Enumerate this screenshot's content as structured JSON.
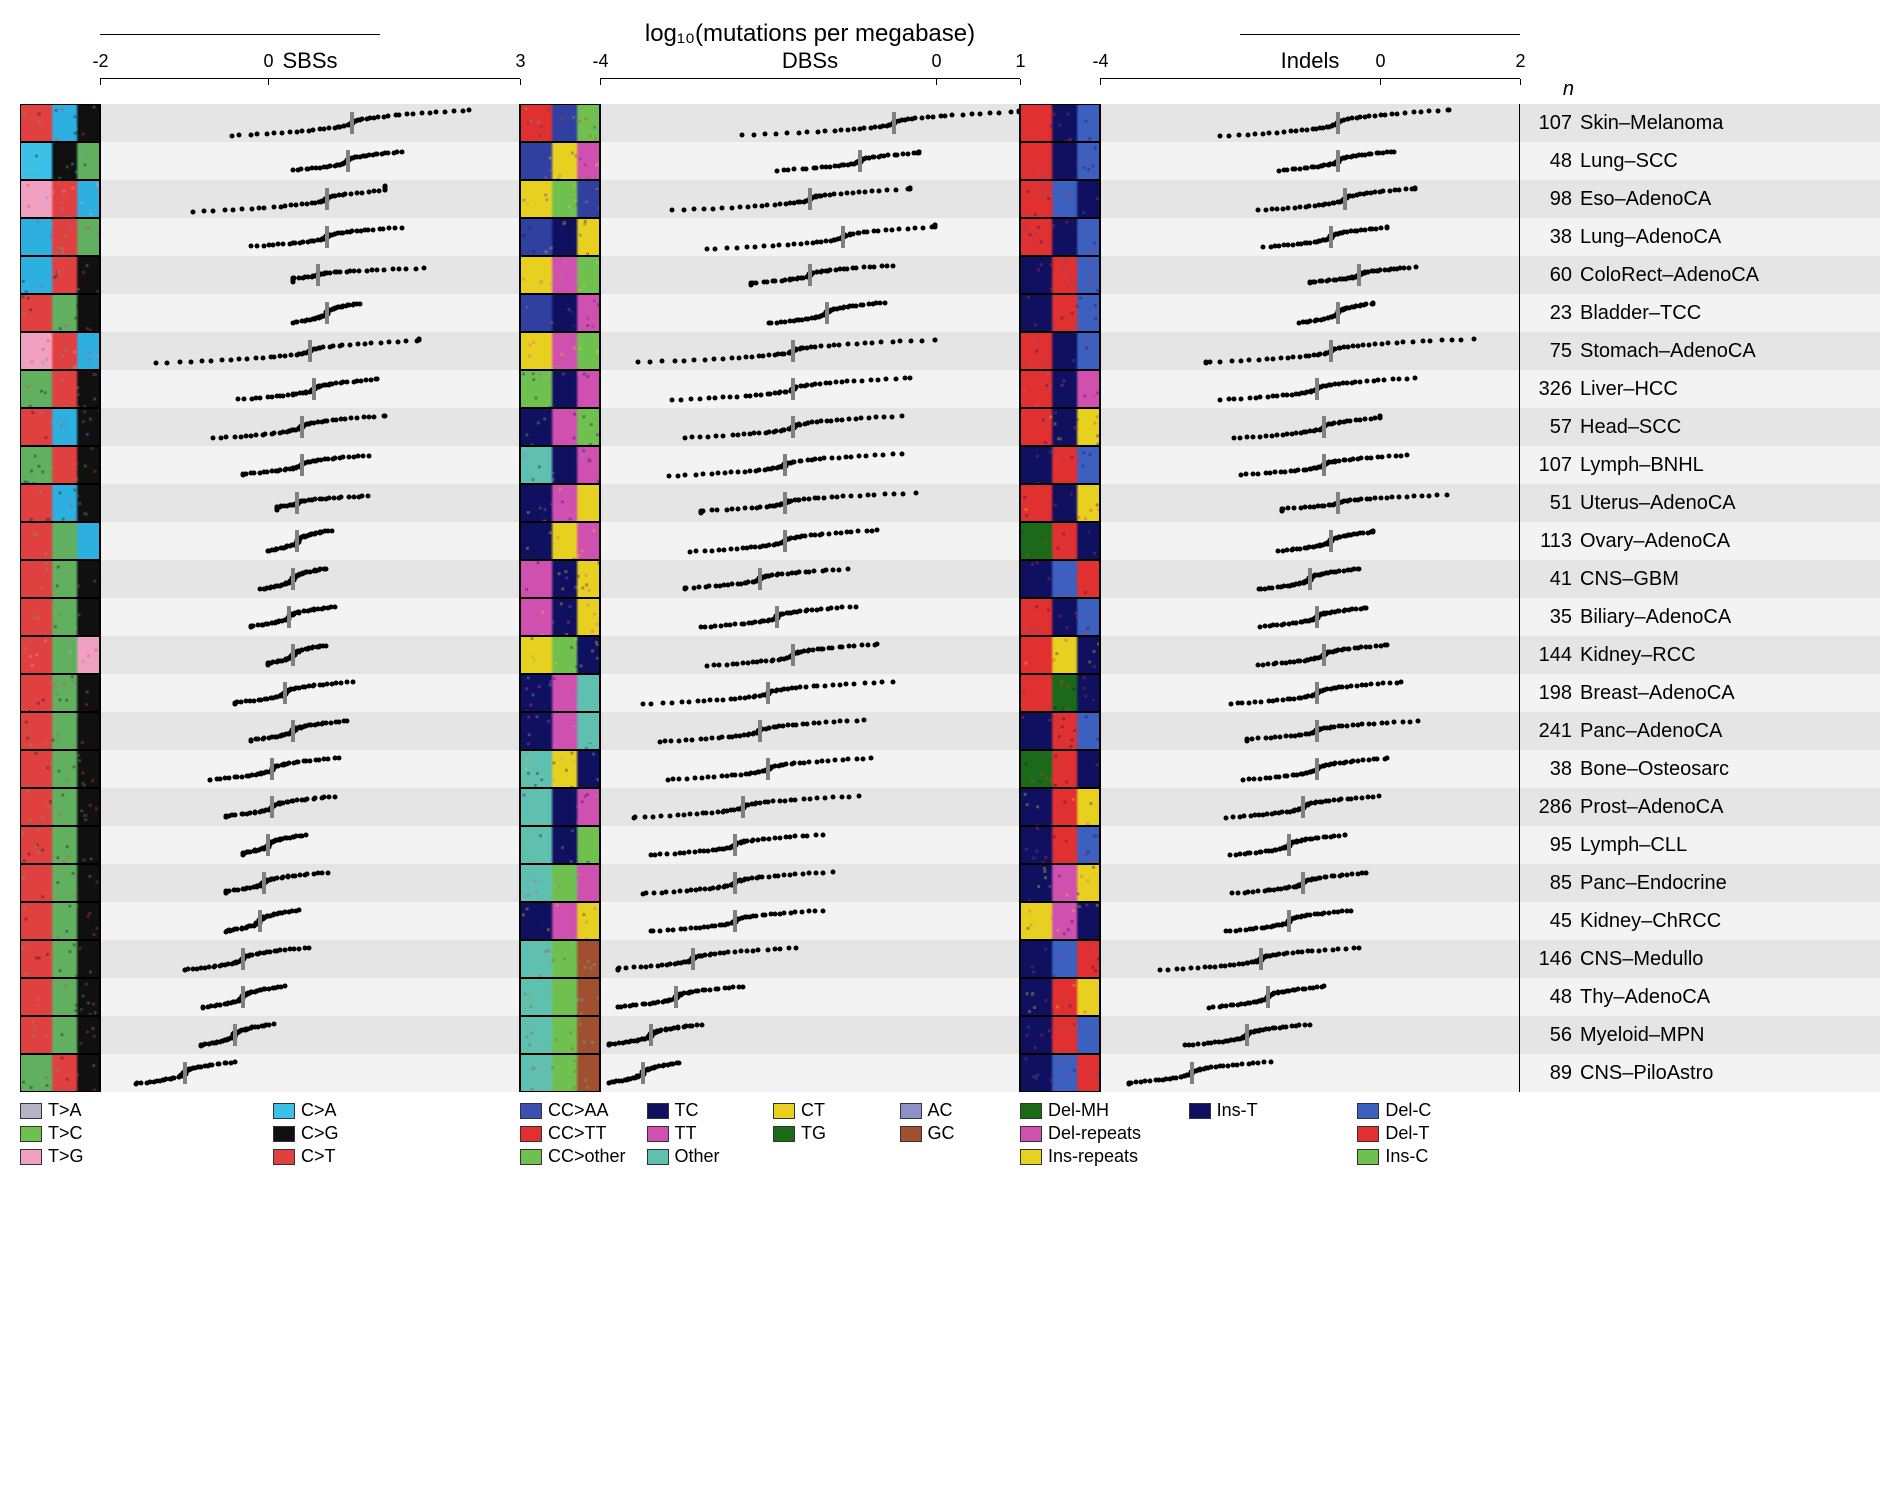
{
  "figure": {
    "main_title": "log₁₀(mutations per megabase)",
    "n_header": "n",
    "stripe_colors": [
      "#e5e5e5",
      "#f3f3f3"
    ],
    "dot_color": "#000000",
    "median_color": "#808080",
    "background_color": "#ffffff",
    "font_family": "Helvetica",
    "title_fontsize": 24,
    "panel_title_fontsize": 22,
    "axis_fontsize": 18,
    "row_label_fontsize": 20
  },
  "panels": [
    {
      "title": "SBSs",
      "xlim": [
        -2,
        3
      ],
      "ticks": [
        -2,
        0,
        3
      ]
    },
    {
      "title": "DBSs",
      "xlim": [
        -4,
        1
      ],
      "ticks": [
        -4,
        0,
        1
      ]
    },
    {
      "title": "Indels",
      "xlim": [
        -4,
        2
      ],
      "ticks": [
        -4,
        0,
        2
      ]
    }
  ],
  "rows": [
    {
      "ct": "Skin–Melanoma",
      "n": 107,
      "sig_sbs": [
        "#e04040",
        "#2db0e0",
        "#101010"
      ],
      "sig_dbs": [
        "#e03030",
        "#3040a0",
        "#70c050"
      ],
      "sig_indels": [
        "#e03030",
        "#101060",
        "#3b60c0"
      ],
      "medians": [
        1.0,
        -0.5,
        -0.6
      ],
      "ranges": [
        [
          -0.5,
          2.4,
          0.12
        ],
        [
          -2.6,
          1.0,
          0.1
        ],
        [
          -2.4,
          1.0,
          0.15
        ]
      ]
    },
    {
      "ct": "Lung–SCC",
      "n": 48,
      "sig_sbs": [
        "#3bc0e8",
        "#101010",
        "#60b060"
      ],
      "sig_dbs": [
        "#3040a0",
        "#e8d020",
        "#d050b0"
      ],
      "sig_indels": [
        "#e03030",
        "#101060",
        "#3b60c0"
      ],
      "medians": [
        0.95,
        -0.9,
        -0.6
      ],
      "ranges": [
        [
          0.3,
          1.6,
          -0.07
        ],
        [
          -2.2,
          -0.2,
          -0.05
        ],
        [
          -1.5,
          0.2,
          -0.05
        ]
      ]
    },
    {
      "ct": "Eso–AdenoCA",
      "n": 98,
      "sig_sbs": [
        "#f0a0c0",
        "#e04040",
        "#2db0e0"
      ],
      "sig_dbs": [
        "#e8d020",
        "#70c050",
        "#3040a0"
      ],
      "sig_indels": [
        "#e03030",
        "#3b60c0",
        "#101060"
      ],
      "medians": [
        0.7,
        -1.5,
        -0.5
      ],
      "ranges": [
        [
          -1.8,
          1.4,
          0.12
        ],
        [
          -3.6,
          -0.3,
          0.05
        ],
        [
          -2.0,
          0.5,
          0.05
        ]
      ]
    },
    {
      "ct": "Lung–AdenoCA",
      "n": 38,
      "sig_sbs": [
        "#2db0e0",
        "#e04040",
        "#60b060"
      ],
      "sig_dbs": [
        "#3040a0",
        "#101060",
        "#e8d020"
      ],
      "sig_indels": [
        "#e03030",
        "#101060",
        "#3b60c0"
      ],
      "medians": [
        0.7,
        -1.1,
        -0.7
      ],
      "ranges": [
        [
          -0.2,
          1.6,
          -0.06
        ],
        [
          -3.3,
          0.0,
          0.1
        ],
        [
          -1.8,
          0.1,
          -0.02
        ]
      ]
    },
    {
      "ct": "ColoRect–AdenoCA",
      "n": 60,
      "sig_sbs": [
        "#2db0e0",
        "#e04040",
        "#101010"
      ],
      "sig_dbs": [
        "#e8d020",
        "#d050b0",
        "#70c050"
      ],
      "sig_indels": [
        "#101060",
        "#e03030",
        "#3b60c0"
      ],
      "medians": [
        0.6,
        -1.5,
        -0.3
      ],
      "ranges": [
        [
          0.3,
          2.8,
          -0.2
        ],
        [
          -2.2,
          -0.2,
          -0.05
        ],
        [
          -1.0,
          0.6,
          -0.15
        ]
      ]
    },
    {
      "ct": "Bladder–TCC",
      "n": 23,
      "sig_sbs": [
        "#e04040",
        "#60b060",
        "#101010"
      ],
      "sig_dbs": [
        "#3040a0",
        "#101060",
        "#d050b0"
      ],
      "sig_indels": [
        "#101060",
        "#e03030",
        "#3b60c0"
      ],
      "medians": [
        0.7,
        -1.3,
        -0.6
      ],
      "ranges": [
        [
          0.3,
          1.1,
          -0.05
        ],
        [
          -2.0,
          -0.6,
          0.0
        ],
        [
          -1.2,
          -0.1,
          -0.03
        ]
      ]
    },
    {
      "ct": "Stomach–AdenoCA",
      "n": 75,
      "sig_sbs": [
        "#f0a0c0",
        "#e04040",
        "#2db0e0"
      ],
      "sig_dbs": [
        "#e8d020",
        "#d050b0",
        "#70c050"
      ],
      "sig_indels": [
        "#e03030",
        "#101060",
        "#3b60c0"
      ],
      "medians": [
        0.5,
        -1.7,
        -0.7
      ],
      "ranges": [
        [
          -1.9,
          1.8,
          0.1
        ],
        [
          -3.7,
          0.0,
          0.05
        ],
        [
          -2.5,
          1.6,
          0.08
        ]
      ]
    },
    {
      "ct": "Liver–HCC",
      "n": 326,
      "sig_sbs": [
        "#60b060",
        "#e04040",
        "#101010"
      ],
      "sig_dbs": [
        "#70c050",
        "#101060",
        "#d050b0"
      ],
      "sig_indels": [
        "#e03030",
        "#101060",
        "#d050b0"
      ],
      "medians": [
        0.55,
        -1.7,
        -0.9
      ],
      "ranges": [
        [
          -0.5,
          1.3,
          0.0
        ],
        [
          -3.2,
          -0.3,
          0.04
        ],
        [
          -2.3,
          0.5,
          0.02
        ]
      ]
    },
    {
      "ct": "Head–SCC",
      "n": 57,
      "sig_sbs": [
        "#e04040",
        "#2db0e0",
        "#101010"
      ],
      "sig_dbs": [
        "#101060",
        "#d050b0",
        "#70c050"
      ],
      "sig_indels": [
        "#e03030",
        "#101060",
        "#e8d020"
      ],
      "medians": [
        0.4,
        -1.7,
        -0.8
      ],
      "ranges": [
        [
          -0.7,
          1.4,
          0.05
        ],
        [
          -3.0,
          -0.4,
          0.02
        ],
        [
          -2.6,
          0.0,
          0.05
        ]
      ]
    },
    {
      "ct": "Lymph–BNHL",
      "n": 107,
      "sig_sbs": [
        "#60b060",
        "#e04040",
        "#101010"
      ],
      "sig_dbs": [
        "#60c0b0",
        "#101060",
        "#d050b0"
      ],
      "sig_indels": [
        "#101060",
        "#e03030",
        "#3b60c0"
      ],
      "medians": [
        0.4,
        -1.8,
        -0.8
      ],
      "ranges": [
        [
          -0.3,
          1.3,
          -0.05
        ],
        [
          -3.2,
          -0.4,
          0.03
        ],
        [
          -2.0,
          0.4,
          -0.03
        ]
      ]
    },
    {
      "ct": "Uterus–AdenoCA",
      "n": 51,
      "sig_sbs": [
        "#e04040",
        "#2db0e0",
        "#101010"
      ],
      "sig_dbs": [
        "#101060",
        "#d050b0",
        "#e8d020"
      ],
      "sig_indels": [
        "#e03030",
        "#101060",
        "#e8d020"
      ],
      "medians": [
        0.35,
        -1.8,
        -0.6
      ],
      "ranges": [
        [
          0.1,
          1.8,
          -0.18
        ],
        [
          -2.8,
          0.3,
          -0.04
        ],
        [
          -1.4,
          1.7,
          -0.13
        ]
      ]
    },
    {
      "ct": "Ovary–AdenoCA",
      "n": 113,
      "sig_sbs": [
        "#e04040",
        "#60b060",
        "#2db0e0"
      ],
      "sig_dbs": [
        "#101060",
        "#e8d020",
        "#d050b0"
      ],
      "sig_indels": [
        "#1a6a1a",
        "#e03030",
        "#101060"
      ],
      "medians": [
        0.35,
        -1.8,
        -0.7
      ],
      "ranges": [
        [
          0.0,
          0.8,
          0.0
        ],
        [
          -3.0,
          -0.7,
          0.02
        ],
        [
          -1.6,
          -0.1,
          -0.02
        ]
      ]
    },
    {
      "ct": "CNS–GBM",
      "n": 41,
      "sig_sbs": [
        "#e04040",
        "#60b060",
        "#101010"
      ],
      "sig_dbs": [
        "#d050b0",
        "#101060",
        "#e8d020"
      ],
      "sig_indels": [
        "#101060",
        "#3b60c0",
        "#e03030"
      ],
      "medians": [
        0.3,
        -2.1,
        -1.0
      ],
      "ranges": [
        [
          -0.1,
          0.7,
          0.0
        ],
        [
          -3.0,
          -0.9,
          -0.03
        ],
        [
          -1.8,
          -0.3,
          0.0
        ]
      ]
    },
    {
      "ct": "Biliary–AdenoCA",
      "n": 35,
      "sig_sbs": [
        "#e04040",
        "#60b060",
        "#101010"
      ],
      "sig_dbs": [
        "#d050b0",
        "#101060",
        "#e8d020"
      ],
      "sig_indels": [
        "#e03030",
        "#101060",
        "#3b60c0"
      ],
      "medians": [
        0.25,
        -1.9,
        -0.9
      ],
      "ranges": [
        [
          -0.2,
          0.9,
          -0.02
        ],
        [
          -2.8,
          -0.9,
          0.0
        ],
        [
          -1.8,
          -0.2,
          -0.05
        ]
      ]
    },
    {
      "ct": "Kidney–RCC",
      "n": 144,
      "sig_sbs": [
        "#e04040",
        "#60b060",
        "#f0a0c0"
      ],
      "sig_dbs": [
        "#e8d020",
        "#70c050",
        "#101060"
      ],
      "sig_indels": [
        "#e03030",
        "#e8d020",
        "#101060"
      ],
      "medians": [
        0.3,
        -1.7,
        -0.8
      ],
      "ranges": [
        [
          0.0,
          0.8,
          -0.05
        ],
        [
          -2.8,
          -0.7,
          0.02
        ],
        [
          -1.8,
          0.1,
          -0.02
        ]
      ]
    },
    {
      "ct": "Breast–AdenoCA",
      "n": 198,
      "sig_sbs": [
        "#e04040",
        "#60b060",
        "#101010"
      ],
      "sig_dbs": [
        "#101060",
        "#d050b0",
        "#60c0b0"
      ],
      "sig_indels": [
        "#e03030",
        "#1a6a1a",
        "#101060"
      ],
      "medians": [
        0.2,
        -2.0,
        -0.9
      ],
      "ranges": [
        [
          -0.4,
          1.2,
          0.04
        ],
        [
          -3.5,
          -0.5,
          0.03
        ],
        [
          -2.2,
          0.3,
          0.02
        ]
      ]
    },
    {
      "ct": "Panc–AdenoCA",
      "n": 241,
      "sig_sbs": [
        "#e04040",
        "#60b060",
        "#101010"
      ],
      "sig_dbs": [
        "#101060",
        "#d050b0",
        "#60c0b0"
      ],
      "sig_indels": [
        "#101060",
        "#e03030",
        "#3b60c0"
      ],
      "medians": [
        0.3,
        -2.1,
        -0.9
      ],
      "ranges": [
        [
          -0.2,
          1.1,
          -0.02
        ],
        [
          -3.3,
          -0.8,
          0.02
        ],
        [
          -1.9,
          1.0,
          -0.03
        ]
      ]
    },
    {
      "ct": "Bone–Osteosarc",
      "n": 38,
      "sig_sbs": [
        "#e04040",
        "#60b060",
        "#101010"
      ],
      "sig_dbs": [
        "#60c0b0",
        "#e8d020",
        "#101060"
      ],
      "sig_indels": [
        "#1a6a1a",
        "#e03030",
        "#101060"
      ],
      "medians": [
        0.05,
        -2.0,
        -0.9
      ],
      "ranges": [
        [
          -0.7,
          0.9,
          0.04
        ],
        [
          -3.2,
          -0.7,
          0.02
        ],
        [
          -2.0,
          0.1,
          0.02
        ]
      ]
    },
    {
      "ct": "Prost–AdenoCA",
      "n": 286,
      "sig_sbs": [
        "#e04040",
        "#60b060",
        "#101010"
      ],
      "sig_dbs": [
        "#60c0b0",
        "#101060",
        "#d050b0"
      ],
      "sig_indels": [
        "#101060",
        "#e03030",
        "#e8d020"
      ],
      "medians": [
        0.05,
        -2.3,
        -1.1
      ],
      "ranges": [
        [
          -0.5,
          1.0,
          0.0
        ],
        [
          -3.6,
          -0.8,
          0.02
        ],
        [
          -2.2,
          0.0,
          0.01
        ]
      ]
    },
    {
      "ct": "Lymph–CLL",
      "n": 95,
      "sig_sbs": [
        "#e04040",
        "#60b060",
        "#101010"
      ],
      "sig_dbs": [
        "#60c0b0",
        "#101060",
        "#70c050"
      ],
      "sig_indels": [
        "#101060",
        "#e03030",
        "#3b60c0"
      ],
      "medians": [
        0.0,
        -2.4,
        -1.3
      ],
      "ranges": [
        [
          -0.3,
          0.6,
          -0.04
        ],
        [
          -3.4,
          -1.3,
          -0.01
        ],
        [
          -2.2,
          -0.5,
          -0.02
        ]
      ]
    },
    {
      "ct": "Panc–Endocrine",
      "n": 85,
      "sig_sbs": [
        "#e04040",
        "#60b060",
        "#101010"
      ],
      "sig_dbs": [
        "#60c0b0",
        "#70c050",
        "#d050b0"
      ],
      "sig_indels": [
        "#101060",
        "#d050b0",
        "#e8d020"
      ],
      "medians": [
        -0.05,
        -2.4,
        -1.1
      ],
      "ranges": [
        [
          -0.5,
          1.0,
          0.0
        ],
        [
          -3.5,
          -1.2,
          0.02
        ],
        [
          -2.2,
          -0.2,
          0.0
        ]
      ]
    },
    {
      "ct": "Kidney–ChRCC",
      "n": 45,
      "sig_sbs": [
        "#e04040",
        "#60b060",
        "#101010"
      ],
      "sig_dbs": [
        "#101060",
        "#d050b0",
        "#e8d020"
      ],
      "sig_indels": [
        "#e8d020",
        "#d050b0",
        "#101060"
      ],
      "medians": [
        -0.1,
        -2.4,
        -1.3
      ],
      "ranges": [
        [
          -0.5,
          0.4,
          0.01
        ],
        [
          -3.4,
          -1.3,
          0.0
        ],
        [
          -2.2,
          -0.4,
          0.0
        ]
      ]
    },
    {
      "ct": "CNS–Medullo",
      "n": 146,
      "sig_sbs": [
        "#e04040",
        "#60b060",
        "#101010"
      ],
      "sig_dbs": [
        "#60c0b0",
        "#70c050",
        "#a05030"
      ],
      "sig_indels": [
        "#101060",
        "#3b60c0",
        "#e03030"
      ],
      "medians": [
        -0.3,
        -2.9,
        -1.7
      ],
      "ranges": [
        [
          -1.0,
          0.6,
          0.05
        ],
        [
          -3.8,
          -1.3,
          0.04
        ],
        [
          -3.2,
          -0.3,
          0.04
        ]
      ]
    },
    {
      "ct": "Thy–AdenoCA",
      "n": 48,
      "sig_sbs": [
        "#e04040",
        "#60b060",
        "#101010"
      ],
      "sig_dbs": [
        "#60c0b0",
        "#70c050",
        "#a05030"
      ],
      "sig_indels": [
        "#101060",
        "#e03030",
        "#e8d020"
      ],
      "medians": [
        -0.3,
        -3.1,
        -1.6
      ],
      "ranges": [
        [
          -0.8,
          0.2,
          0.01
        ],
        [
          -3.8,
          -2.2,
          0.0
        ],
        [
          -2.5,
          -0.8,
          0.01
        ]
      ]
    },
    {
      "ct": "Myeloid–MPN",
      "n": 56,
      "sig_sbs": [
        "#e04040",
        "#60b060",
        "#101010"
      ],
      "sig_dbs": [
        "#60c0b0",
        "#70c050",
        "#a05030"
      ],
      "sig_indels": [
        "#101060",
        "#e03030",
        "#3b60c0"
      ],
      "medians": [
        -0.4,
        -3.4,
        -1.9
      ],
      "ranges": [
        [
          -0.8,
          0.1,
          0.01
        ],
        [
          -3.9,
          -2.7,
          -0.01
        ],
        [
          -2.8,
          -1.0,
          0.0
        ]
      ]
    },
    {
      "ct": "CNS–PiloAstro",
      "n": 89,
      "sig_sbs": [
        "#60b060",
        "#e04040",
        "#101010"
      ],
      "sig_dbs": [
        "#60c0b0",
        "#70c050",
        "#a05030"
      ],
      "sig_indels": [
        "#101060",
        "#3b60c0",
        "#e03030"
      ],
      "medians": [
        -1.0,
        -3.5,
        -2.7
      ],
      "ranges": [
        [
          -1.6,
          -0.4,
          0.02
        ],
        [
          -3.9,
          -3.0,
          -0.02
        ],
        [
          -3.6,
          -1.3,
          0.03
        ]
      ]
    }
  ],
  "legends": [
    {
      "cols": 2,
      "items": [
        {
          "label": "T>A",
          "color": "#b4b4c8"
        },
        {
          "label": "C>A",
          "color": "#3bc0e8"
        },
        {
          "label": "T>C",
          "color": "#70c050"
        },
        {
          "label": "C>G",
          "color": "#101010"
        },
        {
          "label": "T>G",
          "color": "#f0a0c0"
        },
        {
          "label": "C>T",
          "color": "#e04040"
        }
      ]
    },
    {
      "cols": 4,
      "items": [
        {
          "label": "CC>AA",
          "color": "#3b50b0"
        },
        {
          "label": "TC",
          "color": "#101060"
        },
        {
          "label": "CT",
          "color": "#e8d020"
        },
        {
          "label": "AC",
          "color": "#9090c8"
        },
        {
          "label": "CC>TT",
          "color": "#e03030"
        },
        {
          "label": "TT",
          "color": "#d050b0"
        },
        {
          "label": "TG",
          "color": "#1a6a1a"
        },
        {
          "label": "GC",
          "color": "#a05030"
        },
        {
          "label": "CC>other",
          "color": "#70c050"
        },
        {
          "label": "Other",
          "color": "#60c0b0"
        }
      ]
    },
    {
      "cols": 3,
      "items": [
        {
          "label": "Del-MH",
          "color": "#1a6a1a"
        },
        {
          "label": "Ins-T",
          "color": "#101060"
        },
        {
          "label": "Del-C",
          "color": "#3b60c0"
        },
        {
          "label": "Del-repeats",
          "color": "#d050b0"
        },
        {
          "label": "",
          "color": ""
        },
        {
          "label": "Del-T",
          "color": "#e03030"
        },
        {
          "label": "Ins-repeats",
          "color": "#e8d020"
        },
        {
          "label": "",
          "color": ""
        },
        {
          "label": "Ins-C",
          "color": "#70c050"
        }
      ]
    }
  ]
}
